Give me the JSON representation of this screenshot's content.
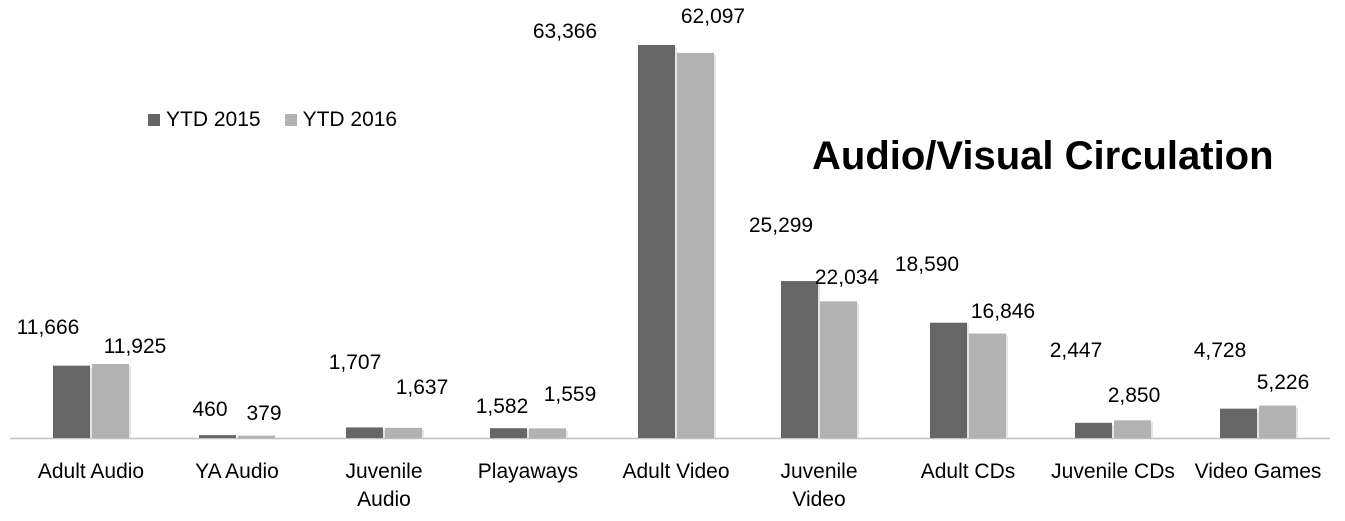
{
  "chart_data": {
    "type": "bar",
    "title": "Audio/Visual Circulation",
    "categories": [
      "Adult Audio",
      "YA Audio",
      "Juvenile Audio",
      "Playaways",
      "Adult Video",
      "Juvenile Video",
      "Adult CDs",
      "Juvenile CDs",
      "Video Games"
    ],
    "series": [
      {
        "name": "YTD 2015",
        "color": "#666666",
        "values": [
          11666,
          460,
          1707,
          1582,
          63366,
          25299,
          18590,
          2447,
          4728
        ],
        "labels": [
          "11,666",
          "460",
          "1,707",
          "1,582",
          "63,366",
          "25,299",
          "18,590",
          "2,447",
          "4,728"
        ]
      },
      {
        "name": "YTD 2016",
        "color": "#b2b2b2",
        "values": [
          11925,
          379,
          1637,
          1559,
          62097,
          22034,
          16846,
          2850,
          5226
        ],
        "labels": [
          "11,925",
          "379",
          "1,637",
          "1,559",
          "62,097",
          "22,034",
          "16,846",
          "2,850",
          "5,226"
        ]
      }
    ],
    "legend_position": "top-left",
    "grid": false
  }
}
